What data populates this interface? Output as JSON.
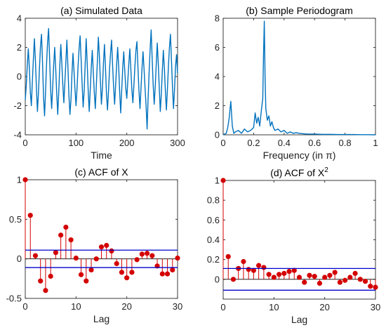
{
  "colors": {
    "series": "#0072bd",
    "stem": "#d40000",
    "bound": "#0000cc"
  },
  "chart_data": [
    {
      "id": "a",
      "type": "line",
      "title": "(a) Simulated Data",
      "xlabel": "Time",
      "ylabel": "",
      "xlim": [
        0,
        300
      ],
      "ylim": [
        -4,
        4
      ],
      "xticks": [
        0,
        100,
        200,
        300
      ],
      "yticks": [
        -4,
        -2,
        0,
        2,
        4
      ],
      "x": [
        0,
        2,
        4,
        6,
        8,
        10,
        12,
        14,
        16,
        18,
        20,
        22,
        24,
        26,
        28,
        30,
        32,
        34,
        36,
        38,
        40,
        42,
        44,
        46,
        48,
        50,
        52,
        54,
        56,
        58,
        60,
        62,
        64,
        66,
        68,
        70,
        72,
        74,
        76,
        78,
        80,
        82,
        84,
        86,
        88,
        90,
        92,
        94,
        96,
        98,
        100,
        102,
        104,
        106,
        108,
        110,
        112,
        114,
        116,
        118,
        120,
        122,
        124,
        126,
        128,
        130,
        132,
        134,
        136,
        138,
        140,
        142,
        144,
        146,
        148,
        150,
        152,
        154,
        156,
        158,
        160,
        162,
        164,
        166,
        168,
        170,
        172,
        174,
        176,
        178,
        180,
        182,
        184,
        186,
        188,
        190,
        192,
        194,
        196,
        198,
        200,
        202,
        204,
        206,
        208,
        210,
        212,
        214,
        216,
        218,
        220,
        222,
        224,
        226,
        228,
        230,
        232,
        234,
        236,
        238,
        240,
        242,
        244,
        246,
        248,
        250,
        252,
        254,
        256,
        258,
        260,
        262,
        264,
        266,
        268,
        270,
        272,
        274,
        276,
        278,
        280,
        282,
        284,
        286,
        288,
        290,
        292,
        294,
        296,
        298,
        300
      ],
      "y": [
        -1.6,
        -0.6,
        0.8,
        1.9,
        0.6,
        -1.1,
        -2.0,
        -0.3,
        1.2,
        2.6,
        1.1,
        -0.8,
        -2.4,
        -1.1,
        0.6,
        2.1,
        2.9,
        1.0,
        -1.4,
        -2.7,
        -1.0,
        0.9,
        2.4,
        3.3,
        1.2,
        -0.9,
        -2.2,
        -0.7,
        0.8,
        2.0,
        0.5,
        -1.2,
        -2.6,
        -1.0,
        0.7,
        2.2,
        0.9,
        -0.6,
        -1.8,
        -0.4,
        1.0,
        2.5,
        0.7,
        -1.3,
        -2.6,
        -1.6,
        0.2,
        1.6,
        0.4,
        -0.9,
        -2.0,
        -0.8,
        0.7,
        1.9,
        2.8,
        1.2,
        -0.5,
        -2.1,
        -1.0,
        0.8,
        2.6,
        0.9,
        -1.0,
        -2.4,
        -0.9,
        0.6,
        1.8,
        0.3,
        -1.1,
        -2.2,
        -0.6,
        1.0,
        2.7,
        1.4,
        -0.3,
        -1.9,
        -0.8,
        0.9,
        2.2,
        0.6,
        -1.2,
        -2.3,
        -1.0,
        0.5,
        1.6,
        2.5,
        0.8,
        -0.7,
        -1.9,
        -0.6,
        0.8,
        2.0,
        0.7,
        -1.1,
        -2.5,
        -0.9,
        0.6,
        1.7,
        0.4,
        -0.8,
        -1.5,
        -0.3,
        0.9,
        1.9,
        0.5,
        -0.9,
        -1.8,
        -0.6,
        0.7,
        1.8,
        2.4,
        0.6,
        -1.0,
        -2.2,
        -0.8,
        0.6,
        1.7,
        0.5,
        -0.8,
        -2.0,
        -3.6,
        -1.5,
        0.3,
        1.9,
        3.2,
        1.2,
        -0.6,
        -1.9,
        -0.7,
        0.8,
        2.3,
        0.9,
        -0.8,
        -2.4,
        -1.2,
        0.4,
        1.8,
        0.6,
        -1.0,
        -2.3,
        -0.9,
        0.7,
        2.0,
        2.9,
        1.1,
        -0.7,
        -2.2,
        -0.9,
        0.7,
        1.5,
        0.2
      ]
    },
    {
      "id": "b",
      "type": "line",
      "title": "(b) Sample Periodogram",
      "xlabel": "Frequency (in   π)",
      "ylabel": "",
      "xlim": [
        0,
        1
      ],
      "ylim": [
        0,
        8
      ],
      "xticks": [
        0,
        0.2,
        0.4,
        0.6,
        0.8,
        1
      ],
      "yticks": [
        0,
        2,
        4,
        6,
        8
      ],
      "x": [
        0.0,
        0.02,
        0.03,
        0.04,
        0.05,
        0.06,
        0.07,
        0.08,
        0.1,
        0.12,
        0.14,
        0.16,
        0.18,
        0.2,
        0.21,
        0.22,
        0.23,
        0.24,
        0.25,
        0.26,
        0.265,
        0.27,
        0.275,
        0.28,
        0.29,
        0.3,
        0.31,
        0.32,
        0.33,
        0.34,
        0.36,
        0.38,
        0.4,
        0.42,
        0.44,
        0.46,
        0.48,
        0.5,
        0.55,
        0.6,
        0.65,
        0.7,
        0.75,
        0.8,
        0.85,
        0.9,
        0.95,
        1.0
      ],
      "y": [
        0.0,
        0.1,
        0.5,
        1.2,
        2.3,
        0.6,
        0.1,
        0.2,
        0.3,
        0.1,
        0.4,
        0.2,
        0.3,
        0.5,
        1.5,
        0.8,
        1.2,
        0.6,
        1.6,
        2.5,
        5.5,
        7.8,
        4.0,
        1.8,
        1.0,
        1.3,
        0.6,
        0.9,
        0.5,
        0.3,
        0.4,
        0.2,
        0.3,
        0.1,
        0.2,
        0.1,
        0.15,
        0.1,
        0.05,
        0.05,
        0.03,
        0.03,
        0.02,
        0.02,
        0.02,
        0.01,
        0.01,
        0.0
      ]
    },
    {
      "id": "c",
      "type": "stem",
      "title": "(c) ACF of  X",
      "xlabel": "Lag",
      "ylabel": "",
      "xlim": [
        0,
        30
      ],
      "ylim": [
        -0.5,
        1
      ],
      "xticks": [
        0,
        10,
        20,
        30
      ],
      "yticks": [
        -0.5,
        0,
        0.5,
        1
      ],
      "xticklabels": [
        "0",
        "10",
        "20",
        "30"
      ],
      "yticklabels": [
        "-0.5",
        "0",
        "0.5",
        "1"
      ],
      "bounds": [
        0.11,
        -0.11
      ],
      "lags": [
        0,
        1,
        2,
        3,
        4,
        5,
        6,
        7,
        8,
        9,
        10,
        11,
        12,
        13,
        14,
        15,
        16,
        17,
        18,
        19,
        20,
        21,
        22,
        23,
        24,
        25,
        26,
        27,
        28,
        29,
        30
      ],
      "values": [
        1.0,
        0.55,
        0.04,
        -0.28,
        -0.4,
        -0.22,
        0.08,
        0.3,
        0.4,
        0.24,
        0.01,
        -0.2,
        -0.28,
        -0.14,
        0.0,
        0.15,
        0.17,
        0.1,
        -0.06,
        -0.17,
        -0.24,
        -0.17,
        -0.01,
        0.06,
        0.07,
        0.04,
        -0.09,
        -0.19,
        -0.19,
        -0.14,
        0.01
      ]
    },
    {
      "id": "d",
      "type": "stem",
      "title": "(d) ACF of  X",
      "title_sup": "2",
      "xlabel": "Lag",
      "ylabel": "",
      "xlim": [
        0,
        30
      ],
      "ylim": [
        -0.2,
        1
      ],
      "xticks": [
        0,
        10,
        20,
        30
      ],
      "yticks": [
        0,
        0.2,
        0.4,
        0.6,
        0.8,
        1
      ],
      "xticklabels": [
        "0",
        "10",
        "20",
        "30"
      ],
      "yticklabels": [
        "0",
        "0.2",
        "0.4",
        "0.6",
        "0.8",
        "1"
      ],
      "bounds": [
        0.11,
        -0.11
      ],
      "lags": [
        0,
        1,
        2,
        3,
        4,
        5,
        6,
        7,
        8,
        9,
        10,
        11,
        12,
        13,
        14,
        15,
        16,
        17,
        18,
        19,
        20,
        21,
        22,
        23,
        24,
        25,
        26,
        27,
        28,
        29,
        30
      ],
      "values": [
        1.0,
        0.23,
        0.0,
        0.11,
        0.18,
        0.1,
        0.09,
        0.14,
        0.12,
        0.05,
        0.02,
        0.05,
        0.06,
        0.08,
        0.09,
        0.02,
        -0.03,
        0.04,
        0.03,
        -0.04,
        0.02,
        0.04,
        0.07,
        -0.03,
        -0.01,
        0.02,
        0.06,
        0.0,
        -0.02,
        -0.07,
        -0.08
      ]
    }
  ]
}
